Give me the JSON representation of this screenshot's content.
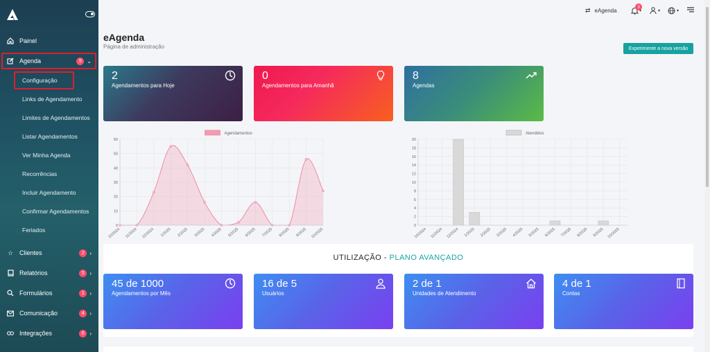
{
  "sidebar": {
    "items": [
      {
        "label": "Painel",
        "icon": "home-icon"
      },
      {
        "label": "Agenda",
        "icon": "edit-icon",
        "badge": "9"
      },
      {
        "label": "Clientes",
        "icon": "star-icon",
        "badge": "2"
      },
      {
        "label": "Relatórios",
        "icon": "book-icon",
        "badge": "5"
      },
      {
        "label": "Formulários",
        "icon": "search-icon",
        "badge": "1"
      },
      {
        "label": "Comunicação",
        "icon": "mail-icon",
        "badge": "4"
      },
      {
        "label": "Integrações",
        "icon": "link-icon",
        "badge": "6"
      }
    ],
    "agenda_sub": [
      "Configuração",
      "Links de Agendamento",
      "Limites de Agendamentos",
      "Listar Agendamentos",
      "Ver Minha Agenda",
      "Recorrências",
      "Incluir Agendamento",
      "Confirmar Agendamentos",
      "Feriados"
    ]
  },
  "topbar": {
    "switch_label": "eAgenda",
    "notifications": "3"
  },
  "header": {
    "title": "eAgenda",
    "subtitle": "Página de administração",
    "new_version_button": "Experimente a nova versão"
  },
  "stats": [
    {
      "number": "2",
      "caption": "Agendamentos para Hoje",
      "icon": "clock-icon"
    },
    {
      "number": "0",
      "caption": "Agendamentos para Amanhã",
      "icon": "lightbulb-icon"
    },
    {
      "number": "8",
      "caption": "Agendas",
      "icon": "trend-icon"
    }
  ],
  "usage": {
    "title": "UTILIZAÇÃO - ",
    "plan": "PLANO AVANÇADO",
    "cards": [
      {
        "value": "45 de 1000",
        "caption": "Agendamentos por Mês",
        "icon": "clock-icon"
      },
      {
        "value": "16 de 5",
        "caption": "Usuários",
        "icon": "users-icon"
      },
      {
        "value": "2 de 1",
        "caption": "Unidades de Atendimento",
        "icon": "house-icon"
      },
      {
        "value": "4 de 1",
        "caption": "Contas",
        "icon": "notebook-icon"
      }
    ]
  },
  "colors": {
    "accent": "#17a2a0",
    "badge": "#ff4d6d",
    "highlight": "#e01e2b"
  },
  "chart_data": [
    {
      "type": "area",
      "legend": "Agendamentos",
      "categories": [
        "10/2024",
        "11/2024",
        "12/2024",
        "1/2025",
        "2/2025",
        "3/2025",
        "4/2025",
        "5/2025",
        "6/2025",
        "7/2025",
        "8/2025",
        "9/2025",
        "10/2025"
      ],
      "values": [
        0,
        0,
        23,
        55,
        42,
        16,
        0,
        2,
        16,
        0,
        0,
        46,
        24
      ],
      "ylim": [
        0,
        60
      ],
      "yticks": [
        "0",
        "10",
        "20",
        "30",
        "40",
        "50",
        "60"
      ],
      "color": "#f39bb0"
    },
    {
      "type": "bar",
      "legend": "Atendidos",
      "categories": [
        "10/2024",
        "11/2024",
        "12/2024",
        "1/2025",
        "2/2025",
        "3/2025",
        "4/2025",
        "5/2025",
        "6/2025",
        "7/2025",
        "8/2025",
        "9/2025",
        "10/2025"
      ],
      "values": [
        0,
        0,
        20,
        3,
        0,
        0,
        0,
        0,
        1,
        0,
        0,
        1,
        0
      ],
      "ylim": [
        0,
        20
      ],
      "yticks": [
        "0",
        "2",
        "4",
        "6",
        "8",
        "10",
        "12",
        "14",
        "16",
        "18",
        "20"
      ],
      "color": "#d9d9d9"
    }
  ]
}
